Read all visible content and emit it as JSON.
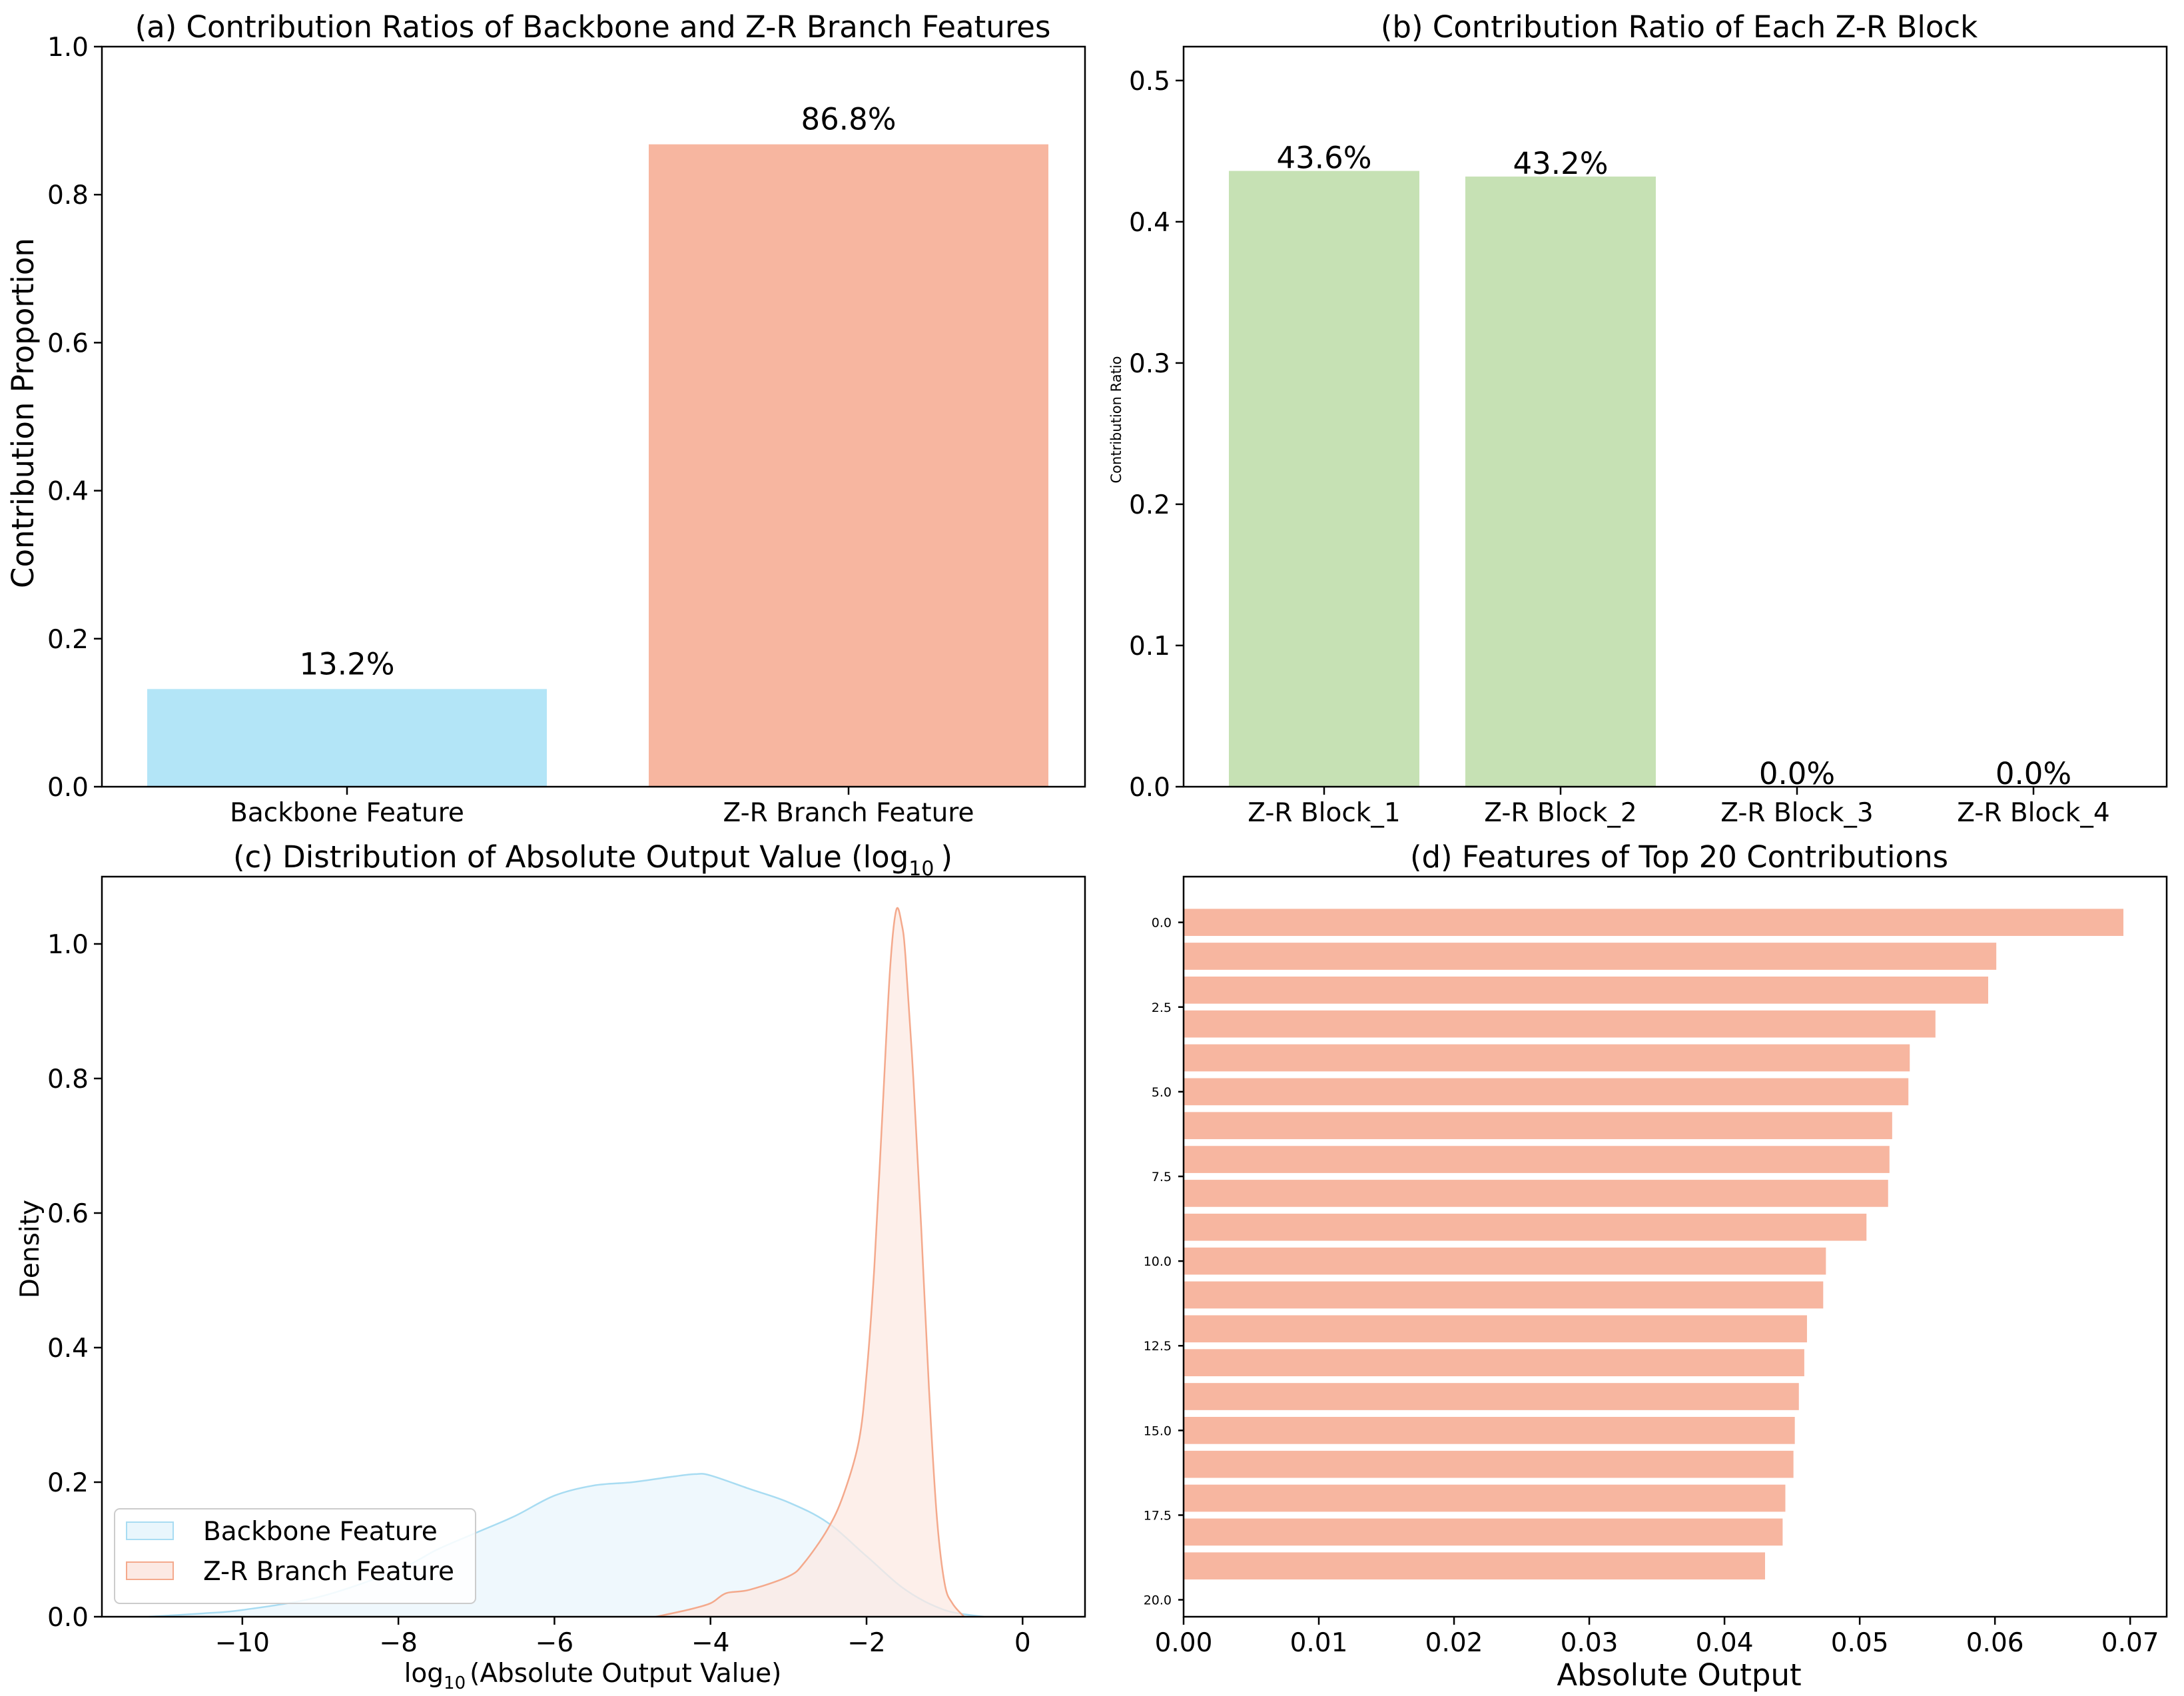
{
  "chart_data": [
    {
      "panel": "a",
      "type": "bar",
      "title": "(a) Contribution Ratios of Backbone and Z-R Branch Features",
      "xlabel": "",
      "ylabel": "Contribution Proportion",
      "categories": [
        "Backbone Feature",
        "Z-R Branch Feature"
      ],
      "values": [
        0.132,
        0.868
      ],
      "data_labels": [
        "13.2%",
        "86.8%"
      ],
      "colors": [
        "#b3e5f7",
        "#f7b6a0"
      ],
      "ylim": [
        0,
        1.0
      ],
      "yticks": [
        "0.0",
        "0.2",
        "0.4",
        "0.6",
        "0.8",
        "1.0"
      ]
    },
    {
      "panel": "b",
      "type": "bar",
      "title": "(b) Contribution Ratio of Each Z-R Block",
      "xlabel": "",
      "ylabel": "Contribution Ratio",
      "categories": [
        "Z-R Block_1",
        "Z-R Block_2",
        "Z-R Block_3",
        "Z-R Block_4"
      ],
      "values": [
        0.436,
        0.432,
        0.0,
        0.0
      ],
      "data_labels": [
        "43.6%",
        "43.2%",
        "0.0%",
        "0.0%"
      ],
      "color": "#c6e1b4",
      "ylim": [
        0,
        0.524
      ],
      "yticks": [
        "0.0",
        "0.1",
        "0.2",
        "0.3",
        "0.4",
        "0.5"
      ]
    },
    {
      "panel": "c",
      "type": "area",
      "title_main": "(c) Distribution of Absolute Output Value (log",
      "title_sub": "10",
      "title_end": ")",
      "xlabel_main": "log",
      "xlabel_sub": "10",
      "xlabel_end": "(Absolute Output Value)",
      "ylabel": "Density",
      "xlim": [
        -11.8,
        0.8
      ],
      "ylim": [
        0,
        1.1
      ],
      "xticks": [
        "-10",
        "-8",
        "-6",
        "-4",
        "-2",
        "0"
      ],
      "yticks": [
        "0.0",
        "0.2",
        "0.4",
        "0.6",
        "0.8",
        "1.0"
      ],
      "legend_position": "lower-left",
      "series": [
        {
          "name": "Backbone Feature",
          "color": "#a8dcf2",
          "fill": "#e9f6fc",
          "x": [
            -11.2,
            -10.5,
            -10.0,
            -9.0,
            -8.0,
            -7.5,
            -7.0,
            -6.5,
            -6.0,
            -5.5,
            -5.0,
            -4.5,
            -4.2,
            -4.0,
            -3.5,
            -3.0,
            -2.5,
            -2.0,
            -1.5,
            -1.0,
            -0.5
          ],
          "y": [
            0.0,
            0.005,
            0.01,
            0.03,
            0.07,
            0.1,
            0.125,
            0.15,
            0.18,
            0.195,
            0.2,
            0.208,
            0.212,
            0.21,
            0.19,
            0.17,
            0.14,
            0.09,
            0.04,
            0.01,
            0.0
          ]
        },
        {
          "name": "Z-R Branch Feature",
          "color": "#f4a98c",
          "fill": "#fce9e3",
          "x": [
            -4.7,
            -4.3,
            -4.0,
            -3.8,
            -3.5,
            -3.0,
            -2.8,
            -2.5,
            -2.3,
            -2.1,
            -2.0,
            -1.9,
            -1.8,
            -1.7,
            -1.62,
            -1.55,
            -1.5,
            -1.4,
            -1.3,
            -1.2,
            -1.1,
            -1.0,
            -0.9,
            -0.75
          ],
          "y": [
            0.0,
            0.01,
            0.02,
            0.035,
            0.04,
            0.06,
            0.08,
            0.13,
            0.18,
            0.26,
            0.36,
            0.52,
            0.74,
            0.96,
            1.05,
            1.03,
            0.98,
            0.8,
            0.58,
            0.34,
            0.15,
            0.05,
            0.02,
            0.0
          ]
        }
      ]
    },
    {
      "panel": "d",
      "type": "bar",
      "orientation": "horizontal",
      "title": "(d) Features of Top 20 Contributions",
      "xlabel": "Absolute Output",
      "ylabel": "",
      "values": [
        0.0695,
        0.0601,
        0.0595,
        0.0556,
        0.0537,
        0.0536,
        0.0524,
        0.0522,
        0.0521,
        0.0505,
        0.0475,
        0.0473,
        0.0461,
        0.0459,
        0.0455,
        0.0452,
        0.0451,
        0.0445,
        0.0443,
        0.043
      ],
      "color": "#f7b6a0",
      "xlim": [
        0.0,
        0.0727
      ],
      "ylim": [
        -1.35,
        20.5
      ],
      "xticks": [
        "0.00",
        "0.01",
        "0.02",
        "0.03",
        "0.04",
        "0.05",
        "0.06",
        "0.07"
      ],
      "yticks": [
        "0.0",
        "2.5",
        "5.0",
        "7.5",
        "10.0",
        "12.5",
        "15.0",
        "17.5",
        "20.0"
      ]
    }
  ]
}
